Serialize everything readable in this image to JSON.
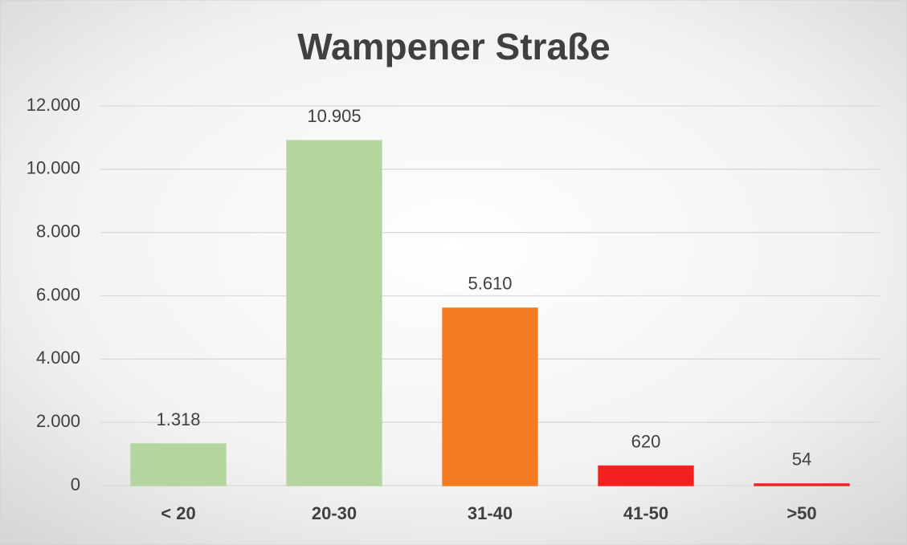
{
  "chart_data": {
    "type": "bar",
    "title": "Wampener Straße",
    "categories": [
      "< 20",
      "20-30",
      "31-40",
      "41-50",
      ">50"
    ],
    "values": [
      1318,
      10905,
      5610,
      620,
      54
    ],
    "value_labels": [
      "1.318",
      "10.905",
      "5.610",
      "620",
      "54"
    ],
    "colors": [
      "#b4d59e",
      "#b4d59e",
      "#f47b20",
      "#f2201f",
      "#f2201f"
    ],
    "ylim": [
      0,
      12000
    ],
    "yticks": [
      0,
      {
        "value": 2000,
        "label": "2.000"
      },
      {
        "value": 4000,
        "label": "4.000"
      },
      {
        "value": 6000,
        "label": "6.000"
      },
      {
        "value": 8000,
        "label": "8.000"
      },
      {
        "value": 10000,
        "label": "10.000"
      },
      {
        "value": 12000,
        "label": "12.000"
      }
    ],
    "grid": true
  }
}
